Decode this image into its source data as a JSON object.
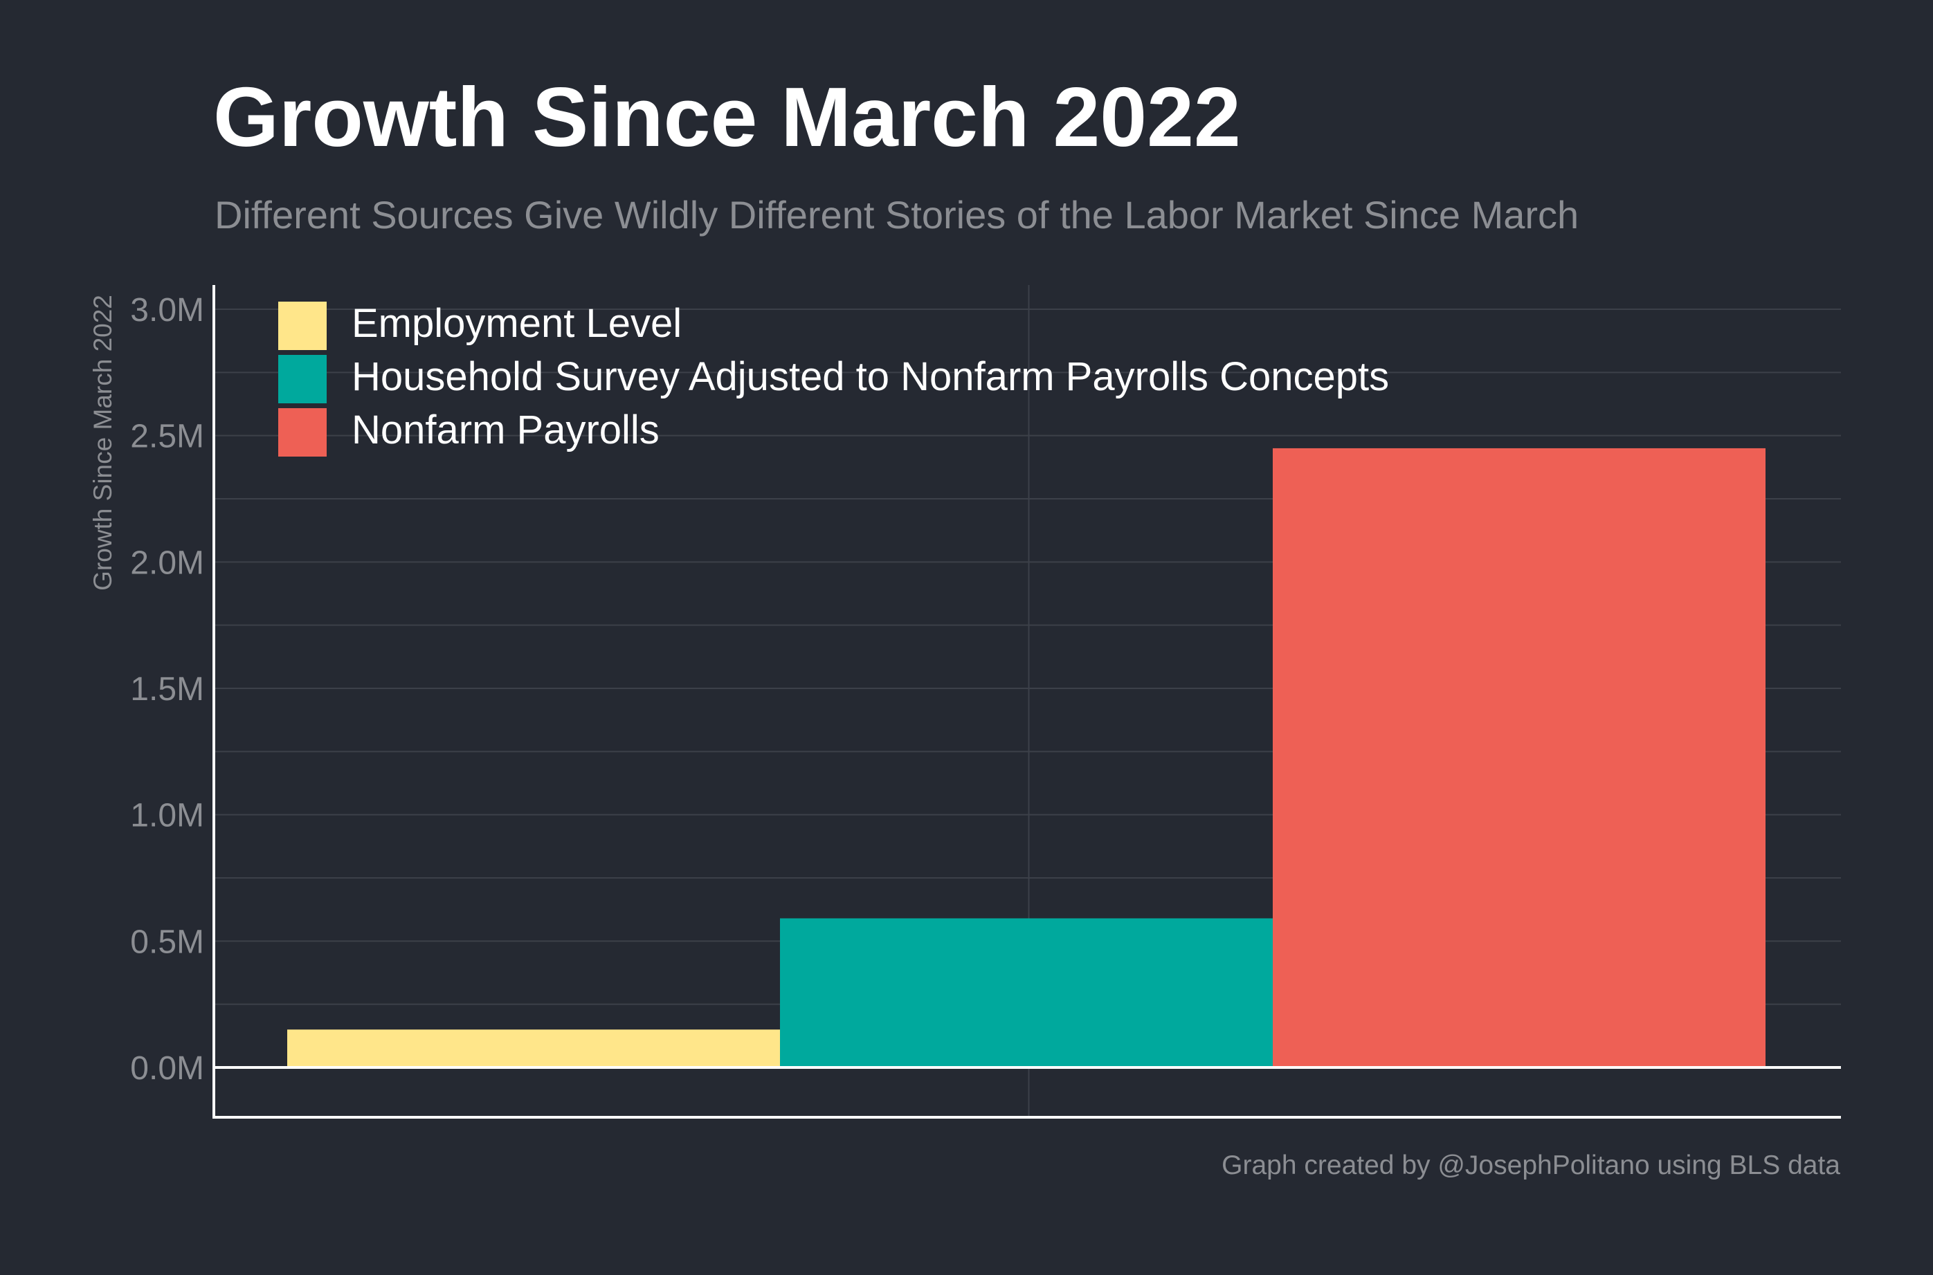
{
  "title": "Growth Since March 2022",
  "subtitle": "Different Sources Give Wildly Different Stories of the Labor Market Since March",
  "caption": "Graph created by @JosephPolitano using BLS data",
  "chart_data": {
    "type": "bar",
    "title": "Growth Since March 2022",
    "subtitle": "Different Sources Give Wildly Different Stories of the Labor Market Since March",
    "xlabel": "",
    "ylabel": "Growth Since March 2022",
    "ylim": [
      -200000,
      3100000
    ],
    "yticks": [
      0,
      500000,
      1000000,
      1500000,
      2000000,
      2500000,
      3000000
    ],
    "ytick_labels": [
      "0.0M",
      "0.5M",
      "1.0M",
      "1.5M",
      "2.0M",
      "2.5M",
      "3.0M"
    ],
    "grid": true,
    "legend_position": "top-left",
    "series": [
      {
        "name": "Employment Level",
        "value": 150000,
        "color": "#FFE68A"
      },
      {
        "name": "Household Survey Adjusted to Nonfarm Payrolls Concepts",
        "value": 590000,
        "color": "#00A99D"
      },
      {
        "name": "Nonfarm Payrolls",
        "value": 2450000,
        "color": "#EE6055"
      }
    ]
  }
}
